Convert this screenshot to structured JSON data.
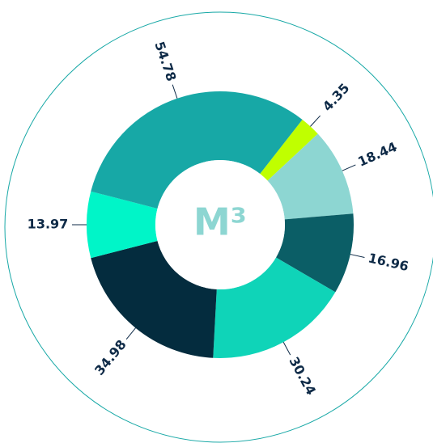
{
  "chart_data": {
    "type": "donut",
    "center_label": "M³",
    "categories": [
      null,
      null,
      null,
      null,
      null,
      null,
      null
    ],
    "values": [
      4.35,
      18.44,
      16.96,
      30.24,
      34.98,
      13.97,
      54.78
    ],
    "colors": [
      "#c0ff00",
      "#8dd6d2",
      "#0b5e66",
      "#0fd4b8",
      "#042c3e",
      "#00f5c8",
      "#17a8a6"
    ]
  }
}
